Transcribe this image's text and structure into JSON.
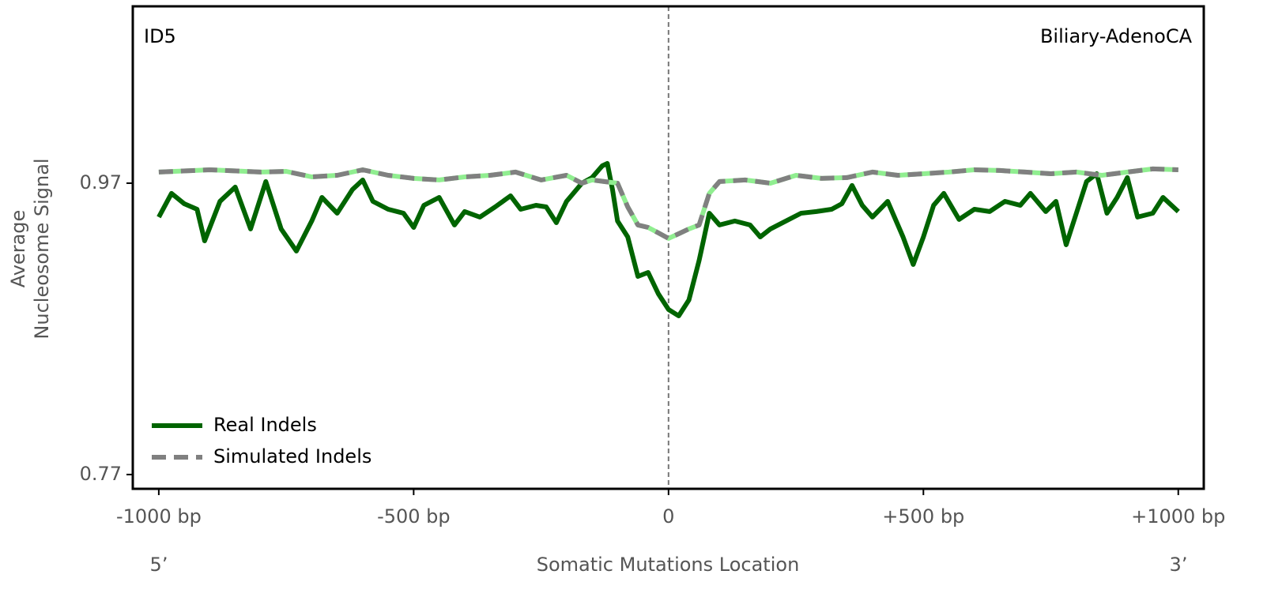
{
  "chart_data": {
    "type": "line",
    "annotations": [
      "ID5",
      "Biliary-AdenoCA"
    ],
    "xlabel": "Somatic Mutations Location",
    "ylabel": [
      "Average",
      "Nucleosome Signal"
    ],
    "x_end_labels": [
      "5’",
      "3’"
    ],
    "xlim": [
      -1051,
      1050
    ],
    "ylim": [
      0.7602,
      1.0914
    ],
    "xticks": [
      {
        "value": -1000,
        "label": "-1000 bp"
      },
      {
        "value": -500,
        "label": "-500 bp"
      },
      0,
      {
        "value": 500,
        "label": "+500 bp"
      },
      {
        "value": 1000,
        "label": "+1000 bp"
      }
    ],
    "yticks": [
      0.77,
      0.97
    ],
    "vline": 0,
    "legend": "lower left",
    "series": [
      {
        "name": "Real Indels",
        "color": "#006400",
        "x": [
          -1000,
          -975,
          -950,
          -925,
          -910,
          -880,
          -850,
          -820,
          -790,
          -760,
          -730,
          -700,
          -680,
          -650,
          -620,
          -600,
          -580,
          -550,
          -520,
          -500,
          -480,
          -450,
          -420,
          -400,
          -370,
          -340,
          -310,
          -290,
          -260,
          -240,
          -220,
          -200,
          -170,
          -150,
          -130,
          -120,
          -110,
          -100,
          -80,
          -60,
          -40,
          -20,
          0,
          20,
          40,
          60,
          70,
          80,
          100,
          130,
          160,
          180,
          200,
          230,
          260,
          290,
          320,
          340,
          360,
          380,
          400,
          430,
          460,
          480,
          500,
          520,
          540,
          570,
          600,
          630,
          660,
          690,
          710,
          740,
          760,
          780,
          800,
          820,
          840,
          860,
          880,
          900,
          920,
          950,
          970,
          1000
        ],
        "values": [
          0.9467,
          0.963,
          0.9559,
          0.9521,
          0.9304,
          0.9575,
          0.9673,
          0.9386,
          0.9711,
          0.9386,
          0.9234,
          0.944,
          0.9602,
          0.9494,
          0.9657,
          0.9722,
          0.9575,
          0.9521,
          0.9494,
          0.9396,
          0.9548,
          0.9602,
          0.9413,
          0.9505,
          0.9467,
          0.9537,
          0.9613,
          0.9521,
          0.9548,
          0.9537,
          0.9429,
          0.9575,
          0.97,
          0.9738,
          0.9819,
          0.9836,
          0.9657,
          0.944,
          0.9331,
          0.906,
          0.9087,
          0.8941,
          0.8833,
          0.8789,
          0.8898,
          0.9169,
          0.9331,
          0.9494,
          0.9413,
          0.944,
          0.9413,
          0.9331,
          0.9386,
          0.944,
          0.9494,
          0.9505,
          0.9521,
          0.9559,
          0.9684,
          0.9548,
          0.9467,
          0.9575,
          0.9331,
          0.9142,
          0.9331,
          0.9548,
          0.963,
          0.9451,
          0.9521,
          0.9505,
          0.9575,
          0.9548,
          0.963,
          0.9505,
          0.9575,
          0.9277,
          0.9494,
          0.9711,
          0.9765,
          0.9494,
          0.9602,
          0.9738,
          0.9467,
          0.9494,
          0.9602,
          0.9505
        ]
      },
      {
        "name": "Simulated Indels",
        "color": "#808080",
        "dash": true,
        "underlay_color": "#90ee90",
        "x": [
          -1000,
          -900,
          -800,
          -750,
          -700,
          -650,
          -600,
          -550,
          -500,
          -450,
          -400,
          -350,
          -300,
          -250,
          -200,
          -170,
          -150,
          -100,
          -80,
          -60,
          -40,
          -20,
          0,
          20,
          40,
          60,
          80,
          100,
          150,
          200,
          250,
          300,
          350,
          400,
          450,
          500,
          550,
          600,
          650,
          700,
          750,
          800,
          850,
          900,
          950,
          1000
        ],
        "values": [
          0.9776,
          0.9792,
          0.9776,
          0.9781,
          0.9743,
          0.9754,
          0.9792,
          0.9754,
          0.9733,
          0.9722,
          0.9743,
          0.9754,
          0.9776,
          0.9722,
          0.9754,
          0.97,
          0.9722,
          0.97,
          0.9537,
          0.9413,
          0.9396,
          0.9359,
          0.9321,
          0.9353,
          0.9386,
          0.9413,
          0.963,
          0.9711,
          0.9722,
          0.97,
          0.9754,
          0.9733,
          0.9738,
          0.9776,
          0.9754,
          0.9765,
          0.9776,
          0.9792,
          0.9787,
          0.9776,
          0.9765,
          0.9776,
          0.9754,
          0.9776,
          0.9798,
          0.9792
        ]
      }
    ]
  }
}
